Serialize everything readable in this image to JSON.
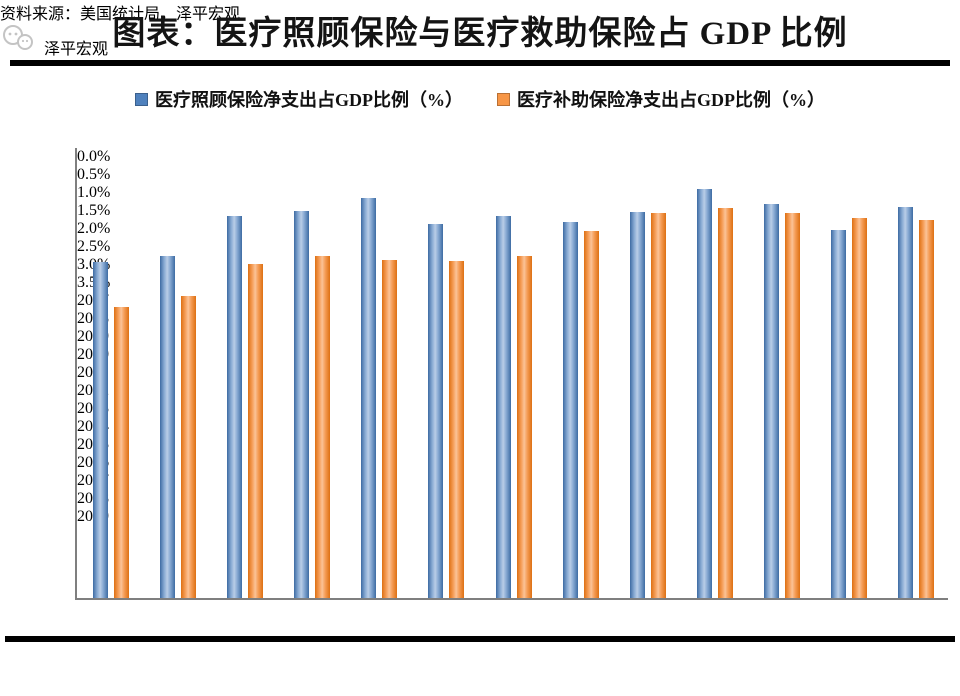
{
  "page": {
    "title": "图表：医疗照顾保险与医疗救助保险占 GDP 比例",
    "source_text": "资料来源：美国统计局，泽平宏观",
    "watermark_text": "泽平宏观"
  },
  "legend": [
    {
      "label": "医疗照顾保险净支出占GDP比例（%）",
      "color": "#4f81bd"
    },
    {
      "label": "医疗补助保险净支出占GDP比例（%）",
      "color": "#f79646"
    }
  ],
  "chart_data": {
    "type": "bar",
    "title": "图表：医疗照顾保险与医疗救助保险占 GDP 比例",
    "categories": [
      "2007",
      "2008",
      "2009",
      "2010",
      "2011",
      "2012",
      "2013",
      "2014",
      "2015",
      "2016",
      "2017",
      "2018",
      "2019"
    ],
    "series": [
      {
        "name": "医疗照顾保险净支出占GDP比例（%）",
        "color": "#4f81bd",
        "values": [
          2.6,
          2.65,
          2.96,
          3.0,
          3.1,
          2.9,
          2.96,
          2.91,
          2.99,
          3.17,
          3.05,
          2.85,
          3.03
        ]
      },
      {
        "name": "医疗补助保险净支出占GDP比例（%）",
        "color": "#f79646",
        "values": [
          2.25,
          2.34,
          2.59,
          2.65,
          2.62,
          2.61,
          2.65,
          2.84,
          2.98,
          3.02,
          2.98,
          2.94,
          2.93
        ]
      }
    ],
    "xlabel": "",
    "ylabel": "",
    "ylim": [
      0,
      3.5
    ],
    "ytick_step": 0.5,
    "ytick_suffix": "%",
    "grid": false,
    "legend_position": "top",
    "icons": [
      "zepan-logo-icon"
    ]
  }
}
